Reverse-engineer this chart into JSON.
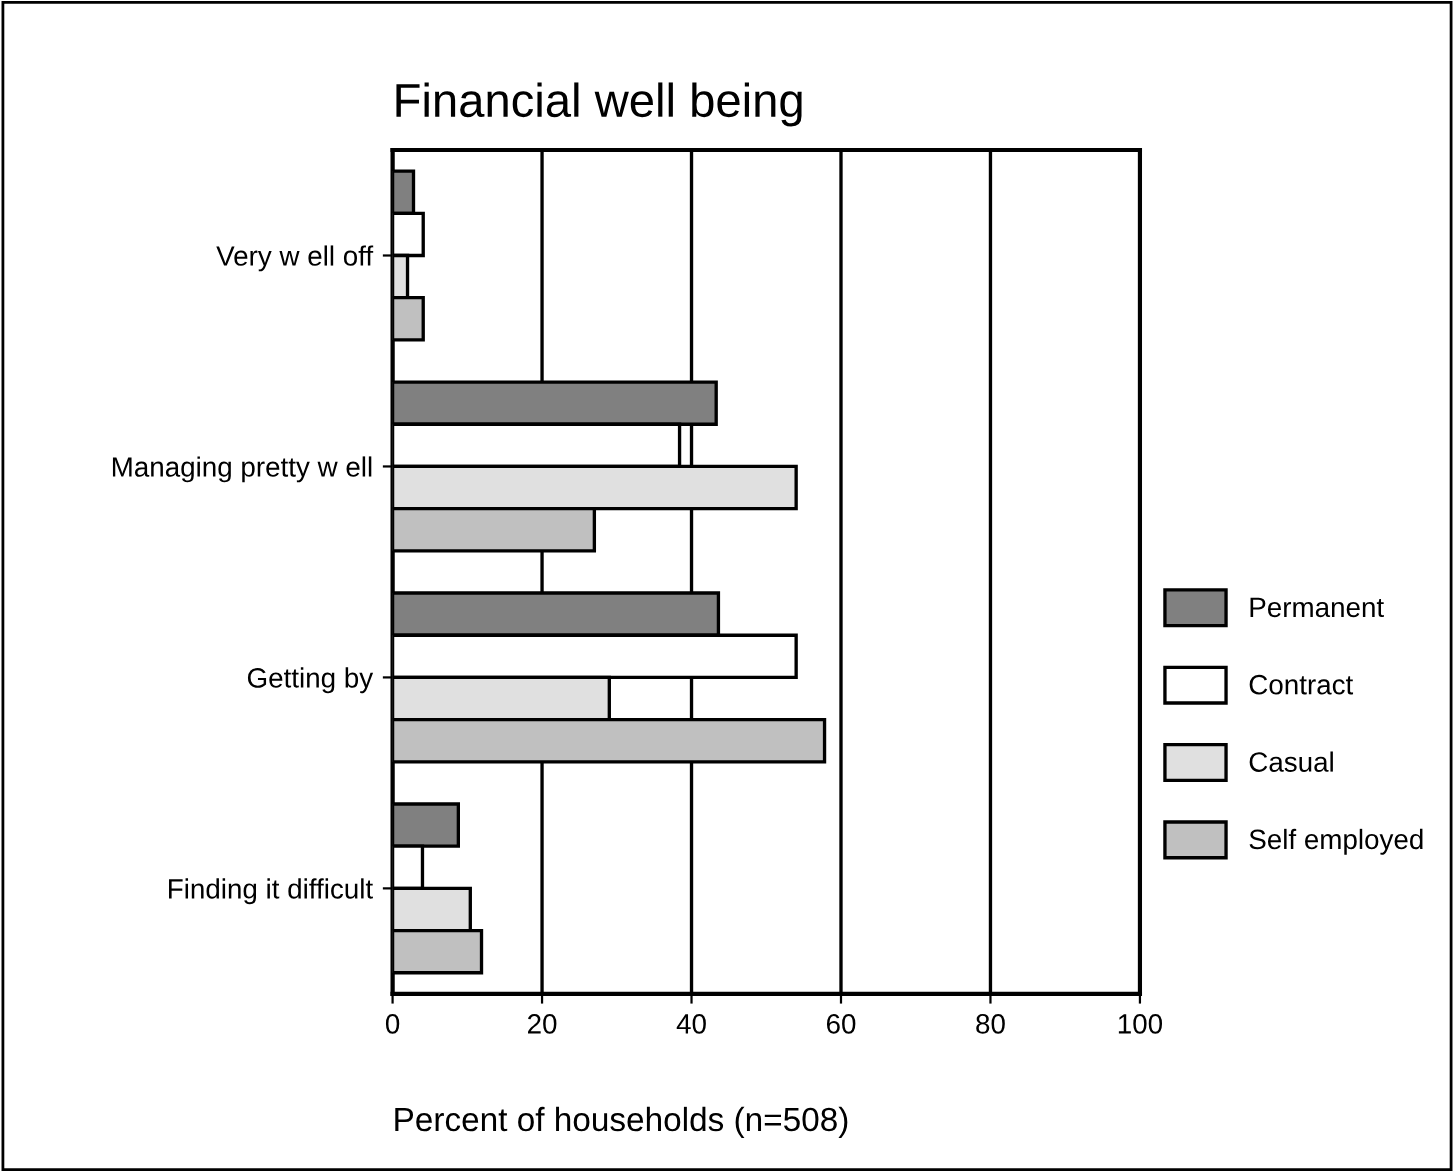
{
  "chart_data": {
    "type": "bar",
    "orientation": "horizontal",
    "title": "Financial well being",
    "xlabel": "Percent of households (n=508)",
    "categories": [
      "Very w ell off",
      "Managing pretty w ell",
      "Getting by",
      "Finding it difficult"
    ],
    "series": [
      {
        "name": "Permanent",
        "color": "#808080",
        "values": [
          2.8,
          43.3,
          43.6,
          8.8
        ]
      },
      {
        "name": "Contract",
        "color": "#ffffff",
        "values": [
          4.1,
          38.4,
          54,
          4
        ]
      },
      {
        "name": "Casual",
        "color": "#e0e0e0",
        "values": [
          2,
          54,
          29,
          10.4
        ]
      },
      {
        "name": "Self employed",
        "color": "#c0c0c0",
        "values": [
          4.1,
          27,
          57.8,
          11.9
        ]
      }
    ],
    "xlim": [
      0,
      100
    ],
    "xticks": [
      0,
      20,
      40,
      60,
      80,
      100
    ],
    "grid": "x",
    "legend": "right"
  }
}
